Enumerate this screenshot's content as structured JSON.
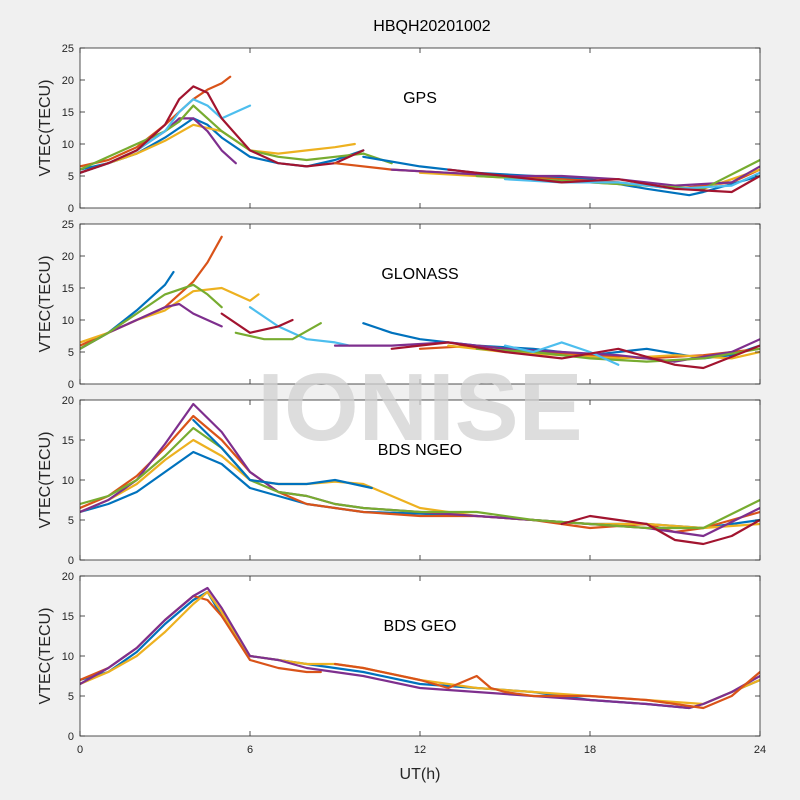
{
  "figure_title": "HBQH20201002",
  "watermark": "IONISE",
  "chart_data": [
    {
      "type": "line",
      "title": "GPS",
      "xlabel": "",
      "ylabel": "VTEC(TECU)",
      "xlim": [
        0,
        24
      ],
      "ylim": [
        0,
        25
      ],
      "yticks": [
        0,
        5,
        10,
        15,
        20,
        25
      ],
      "series": [
        {
          "color": "#0072bd",
          "x": [
            0,
            1,
            2,
            3,
            3.5,
            4,
            4.5,
            5,
            6,
            7,
            8,
            9,
            10
          ],
          "y": [
            6,
            7,
            8.5,
            11,
            12.5,
            14,
            13,
            11,
            8,
            7,
            6.5,
            7.5,
            9
          ]
        },
        {
          "color": "#d95319",
          "x": [
            0,
            1,
            2,
            3,
            4,
            4.5,
            5,
            5.3
          ],
          "y": [
            6.5,
            7.5,
            9.5,
            13,
            17,
            18.5,
            19.5,
            20.5
          ]
        },
        {
          "color": "#edb120",
          "x": [
            0,
            1,
            2,
            3,
            4,
            5,
            6,
            7,
            8,
            9,
            9.7
          ],
          "y": [
            5.5,
            7,
            8.5,
            10.5,
            13,
            12,
            9,
            8.5,
            9,
            9.5,
            10
          ]
        },
        {
          "color": "#7e2f8e",
          "x": [
            0,
            1,
            2,
            3,
            3.5,
            4,
            4.5,
            5,
            5.5
          ],
          "y": [
            5.5,
            7,
            9,
            12,
            14,
            14,
            12,
            9,
            7
          ]
        },
        {
          "color": "#77ac30",
          "x": [
            0,
            1,
            2,
            3,
            3.5,
            4,
            5,
            6,
            7,
            8,
            9,
            10,
            11
          ],
          "y": [
            6,
            8,
            10,
            12,
            13.5,
            16,
            12,
            9,
            8,
            7.5,
            8,
            8.5,
            7
          ]
        },
        {
          "color": "#4dbeee",
          "x": [
            0,
            1,
            2,
            3,
            3.5,
            4,
            4.5,
            5,
            5.5,
            6
          ],
          "y": [
            5.5,
            7,
            9,
            12,
            15,
            17,
            16,
            14,
            15,
            16
          ]
        },
        {
          "color": "#a2142f",
          "x": [
            0,
            1,
            2,
            3,
            3.5,
            4,
            4.5,
            5,
            6,
            7,
            8,
            9,
            10
          ],
          "y": [
            5.5,
            7,
            9,
            13,
            17,
            19,
            18,
            14,
            9,
            7,
            6.5,
            7,
            9
          ]
        },
        {
          "color": "#0072bd",
          "x": [
            10,
            12,
            14,
            16,
            18,
            20,
            21.5,
            22,
            24
          ],
          "y": [
            8,
            6.5,
            5.5,
            5,
            4.5,
            3,
            2,
            2.5,
            5
          ]
        },
        {
          "color": "#d95319",
          "x": [
            9,
            11,
            13,
            15,
            17,
            19,
            21,
            23,
            24
          ],
          "y": [
            7,
            6,
            5.5,
            5,
            4.5,
            4,
            3,
            4,
            6
          ]
        },
        {
          "color": "#edb120",
          "x": [
            12,
            14,
            16,
            18,
            20,
            22,
            24
          ],
          "y": [
            5.5,
            5,
            4.5,
            4,
            3.5,
            3,
            6
          ]
        },
        {
          "color": "#7e2f8e",
          "x": [
            11,
            13,
            15,
            17,
            19,
            21,
            23,
            24
          ],
          "y": [
            6,
            5.5,
            5,
            5,
            4.5,
            3.5,
            4,
            6.5
          ]
        },
        {
          "color": "#77ac30",
          "x": [
            14,
            16,
            18,
            20,
            22,
            24
          ],
          "y": [
            5,
            4.5,
            4,
            3.5,
            3,
            7.5
          ]
        },
        {
          "color": "#4dbeee",
          "x": [
            15,
            17,
            19,
            21,
            23,
            24
          ],
          "y": [
            4.5,
            4,
            4,
            3,
            3.5,
            5.5
          ]
        },
        {
          "color": "#a2142f",
          "x": [
            13,
            15,
            17,
            19,
            21,
            23,
            24
          ],
          "y": [
            6,
            5,
            4,
            4.5,
            3,
            2.5,
            5
          ]
        }
      ]
    },
    {
      "type": "line",
      "title": "GLONASS",
      "xlabel": "",
      "ylabel": "VTEC(TECU)",
      "xlim": [
        0,
        24
      ],
      "ylim": [
        0,
        25
      ],
      "yticks": [
        0,
        5,
        10,
        15,
        20,
        25
      ],
      "series": [
        {
          "color": "#0072bd",
          "x": [
            0,
            1,
            2,
            3,
            3.3
          ],
          "y": [
            5.5,
            8,
            11.5,
            15.5,
            17.5
          ]
        },
        {
          "color": "#d95319",
          "x": [
            0,
            1,
            2,
            3,
            4,
            4.5,
            5
          ],
          "y": [
            6,
            8,
            10,
            12,
            16,
            19,
            23
          ]
        },
        {
          "color": "#edb120",
          "x": [
            0,
            1,
            2,
            3,
            4,
            5,
            6,
            6.3
          ],
          "y": [
            6.5,
            8,
            10,
            11.5,
            14.5,
            15,
            13,
            14
          ]
        },
        {
          "color": "#7e2f8e",
          "x": [
            0,
            1,
            2,
            3,
            3.5,
            4,
            4.5,
            5
          ],
          "y": [
            5.5,
            8,
            10,
            12,
            12.5,
            11,
            10,
            9
          ]
        },
        {
          "color": "#77ac30",
          "x": [
            0,
            1,
            2,
            3,
            4,
            4.5,
            5
          ],
          "y": [
            5.5,
            8,
            11,
            14,
            15.5,
            14,
            12
          ]
        },
        {
          "color": "#4dbeee",
          "x": [
            6,
            7,
            8,
            9,
            9.5
          ],
          "y": [
            12,
            9,
            7,
            6.5,
            6
          ]
        },
        {
          "color": "#a2142f",
          "x": [
            5,
            6,
            7,
            7.5
          ],
          "y": [
            11,
            8,
            9,
            10
          ]
        },
        {
          "color": "#77ac30",
          "x": [
            5.5,
            6.5,
            7.5,
            8.5
          ],
          "y": [
            8,
            7,
            7,
            9.5
          ]
        },
        {
          "color": "#0072bd",
          "x": [
            10,
            11,
            12,
            14,
            16,
            18,
            20,
            22,
            23,
            24
          ],
          "y": [
            9.5,
            8,
            7,
            6,
            5.5,
            4.5,
            5.5,
            4,
            4.5,
            6
          ]
        },
        {
          "color": "#d95319",
          "x": [
            12,
            14,
            16,
            18,
            20,
            22,
            24
          ],
          "y": [
            5.5,
            6,
            5,
            4.5,
            4,
            4.5,
            5.5
          ]
        },
        {
          "color": "#edb120",
          "x": [
            13,
            15,
            17,
            19,
            21,
            23,
            24
          ],
          "y": [
            6,
            5,
            4.5,
            4,
            4.5,
            4,
            5
          ]
        },
        {
          "color": "#7e2f8e",
          "x": [
            9,
            11,
            13,
            15,
            17,
            19,
            21,
            23,
            24
          ],
          "y": [
            6,
            6,
            6.5,
            5.5,
            5,
            4.5,
            3.5,
            5,
            7
          ]
        },
        {
          "color": "#77ac30",
          "x": [
            14,
            16,
            18,
            20,
            22,
            24
          ],
          "y": [
            5.5,
            5,
            4,
            3.5,
            4,
            5.5
          ]
        },
        {
          "color": "#4dbeee",
          "x": [
            15,
            16,
            17,
            18,
            19
          ],
          "y": [
            6,
            5,
            6.5,
            5,
            3
          ]
        },
        {
          "color": "#a2142f",
          "x": [
            11,
            13,
            15,
            17,
            19,
            21,
            22,
            24
          ],
          "y": [
            5.5,
            6.5,
            5,
            4,
            5.5,
            3,
            2.5,
            6
          ]
        }
      ]
    },
    {
      "type": "line",
      "title": "BDS NGEO",
      "xlabel": "",
      "ylabel": "VTEC(TECU)",
      "xlim": [
        0,
        24
      ],
      "ylim": [
        0,
        20
      ],
      "yticks": [
        0,
        5,
        10,
        15,
        20
      ],
      "series": [
        {
          "color": "#0072bd",
          "x": [
            0,
            1,
            2,
            3,
            4,
            5,
            6,
            7,
            8,
            9,
            10,
            12,
            14,
            16,
            18,
            20,
            22,
            24
          ],
          "y": [
            6,
            7,
            8.5,
            11,
            13.5,
            12,
            9,
            8,
            7,
            6.5,
            6,
            5.8,
            5.5,
            5,
            4.5,
            4.5,
            4,
            5
          ]
        },
        {
          "color": "#d95319",
          "x": [
            0,
            1,
            2,
            3,
            4,
            5,
            6,
            7,
            8,
            9,
            10,
            12,
            14,
            16,
            18,
            20,
            21,
            22,
            24
          ],
          "y": [
            6.5,
            8,
            10.5,
            14,
            18,
            15,
            11,
            8.5,
            7,
            6.5,
            6,
            5.5,
            5.5,
            5,
            4,
            4.5,
            3.5,
            4,
            6
          ]
        },
        {
          "color": "#edb120",
          "x": [
            0,
            1,
            2,
            3,
            4,
            5,
            6,
            7,
            8,
            9,
            10,
            12,
            14,
            16,
            18,
            20,
            22,
            24
          ],
          "y": [
            6,
            7.5,
            9.5,
            12.5,
            15,
            13,
            10,
            9.5,
            9.5,
            9.8,
            9.5,
            6.5,
            5.5,
            5,
            4.5,
            4.5,
            4,
            4.5
          ]
        },
        {
          "color": "#7e2f8e",
          "x": [
            0,
            1,
            2,
            3,
            4,
            5,
            6,
            7,
            8,
            9,
            10,
            12,
            14,
            16,
            18,
            20,
            22,
            24
          ],
          "y": [
            6,
            7.5,
            10,
            14.5,
            19.5,
            16,
            11,
            8.5,
            8,
            7,
            6.5,
            6,
            5.5,
            5,
            4.5,
            4,
            3,
            6.5
          ]
        },
        {
          "color": "#77ac30",
          "x": [
            0,
            1,
            2,
            3,
            4,
            5,
            6,
            7,
            8,
            9,
            10,
            12,
            14,
            16,
            18,
            20,
            22,
            24
          ],
          "y": [
            7,
            8,
            10,
            13,
            16.5,
            14,
            10,
            8.5,
            8,
            7,
            6.5,
            6,
            6,
            5,
            4.5,
            4,
            4,
            7.5
          ]
        },
        {
          "color": "#0072bd",
          "x": [
            4,
            5,
            6,
            7,
            8,
            9,
            10.3
          ],
          "y": [
            17.5,
            14,
            10,
            9.5,
            9.5,
            10,
            9
          ]
        },
        {
          "color": "#a2142f",
          "x": [
            17,
            18,
            19,
            20,
            21,
            22,
            23,
            24
          ],
          "y": [
            4.5,
            5.5,
            5,
            4.5,
            2.5,
            2,
            3,
            5
          ]
        }
      ]
    },
    {
      "type": "line",
      "title": "BDS GEO",
      "xlabel": "UT(h)",
      "ylabel": "VTEC(TECU)",
      "xlim": [
        0,
        24
      ],
      "ylim": [
        0,
        20
      ],
      "yticks": [
        0,
        5,
        10,
        15,
        20
      ],
      "xticks": [
        0,
        6,
        12,
        18,
        24
      ],
      "series": [
        {
          "color": "#0072bd",
          "x": [
            0,
            1,
            2,
            3,
            4,
            4.5,
            5,
            6,
            7,
            8,
            9,
            10,
            12,
            14,
            16,
            18,
            20,
            21.5,
            22,
            23,
            24
          ],
          "y": [
            7,
            8,
            10.5,
            14,
            17,
            18,
            15,
            10,
            9.5,
            9,
            8.5,
            8,
            6.5,
            6,
            5.5,
            4.5,
            4,
            3.5,
            4,
            5.5,
            7
          ]
        },
        {
          "color": "#d95319",
          "x": [
            0,
            1,
            2,
            3,
            4,
            4.5,
            5,
            6,
            7,
            8,
            8.5
          ],
          "y": [
            7,
            8.5,
            11,
            14.5,
            17.5,
            17,
            15,
            9.5,
            8.5,
            8,
            8
          ]
        },
        {
          "color": "#edb120",
          "x": [
            0,
            1,
            2,
            3,
            4,
            4.5,
            5,
            6,
            7,
            8,
            9,
            10,
            12,
            14,
            16,
            18,
            20,
            22,
            23,
            24
          ],
          "y": [
            6.5,
            8,
            10,
            13,
            16.5,
            18,
            15.5,
            10,
            9.5,
            9,
            9,
            8.5,
            7,
            6,
            5.5,
            5,
            4.5,
            4,
            5.5,
            7
          ]
        },
        {
          "color": "#7e2f8e",
          "x": [
            0,
            1,
            2,
            3,
            4,
            4.5,
            5,
            6,
            7,
            8,
            9,
            10,
            12,
            14,
            16,
            18,
            20,
            21.5,
            22,
            23,
            24
          ],
          "y": [
            6.5,
            8.5,
            11,
            14.5,
            17.5,
            18.5,
            16,
            10,
            9.5,
            8.5,
            8,
            7.5,
            6,
            5.5,
            5,
            4.5,
            4,
            3.5,
            4,
            5.5,
            7.5
          ]
        },
        {
          "color": "#d95319",
          "x": [
            9,
            10,
            12,
            13,
            14,
            14.5,
            15,
            16,
            18,
            20,
            21,
            22,
            23,
            24
          ],
          "y": [
            9,
            8.5,
            7,
            6,
            7.5,
            6,
            5.5,
            5,
            5,
            4.5,
            4,
            3.5,
            5,
            8
          ]
        }
      ]
    }
  ]
}
